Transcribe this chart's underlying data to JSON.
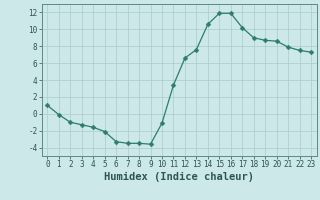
{
  "x": [
    0,
    1,
    2,
    3,
    4,
    5,
    6,
    7,
    8,
    9,
    10,
    11,
    12,
    13,
    14,
    15,
    16,
    17,
    18,
    19,
    20,
    21,
    22,
    23
  ],
  "y": [
    1.0,
    -0.1,
    -1.0,
    -1.3,
    -1.6,
    -2.1,
    -3.3,
    -3.5,
    -3.5,
    -3.6,
    -1.1,
    3.4,
    6.6,
    7.6,
    10.6,
    11.9,
    11.9,
    10.2,
    9.0,
    8.7,
    8.6,
    7.9,
    7.5,
    7.3
  ],
  "line_color": "#2d7d6e",
  "marker": "D",
  "marker_size": 2.5,
  "bg_color": "#cce8e8",
  "grid_color": "#aacccc",
  "xlabel": "Humidex (Indice chaleur)",
  "ylabel": "",
  "xlim": [
    -0.5,
    23.5
  ],
  "ylim": [
    -5,
    13
  ],
  "yticks": [
    -4,
    -2,
    0,
    2,
    4,
    6,
    8,
    10,
    12
  ],
  "xticks": [
    0,
    1,
    2,
    3,
    4,
    5,
    6,
    7,
    8,
    9,
    10,
    11,
    12,
    13,
    14,
    15,
    16,
    17,
    18,
    19,
    20,
    21,
    22,
    23
  ],
  "tick_label_fontsize": 5.5,
  "xlabel_fontsize": 7.5
}
